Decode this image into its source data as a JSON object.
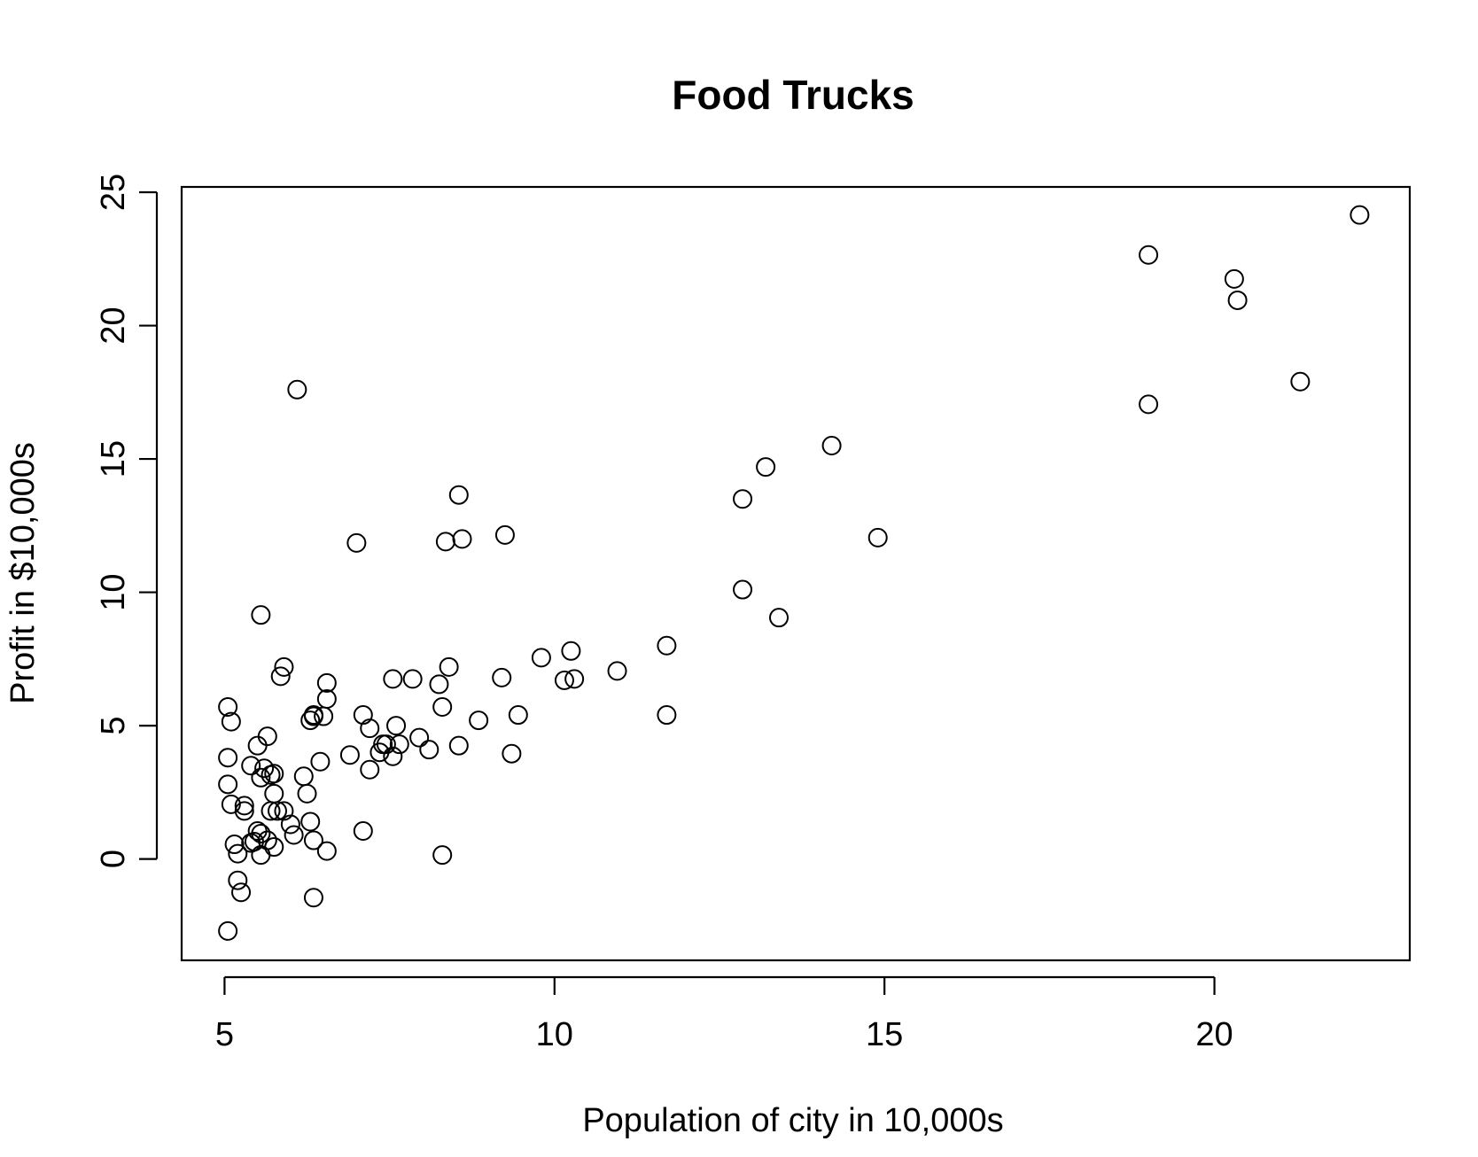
{
  "chart_data": {
    "type": "scatter",
    "title": "Food Trucks",
    "xlabel": "Population of city in 10,000s",
    "ylabel": "Profit in $10,000s",
    "xlim": [
      4.35,
      22.96
    ],
    "ylim": [
      -3.8,
      25.2
    ],
    "xticks": [
      5,
      10,
      15,
      20
    ],
    "yticks": [
      0,
      5,
      10,
      15,
      20,
      25
    ],
    "grid": false,
    "marker": "open-circle",
    "color": "#000000",
    "x": [
      22.2,
      19.0,
      20.3,
      20.35,
      21.3,
      19.0,
      14.2,
      13.2,
      12.85,
      14.9,
      12.85,
      13.4,
      11.7,
      11.7,
      10.95,
      10.3,
      10.25,
      10.15,
      9.8,
      9.2,
      9.45,
      9.35,
      9.25,
      8.85,
      8.6,
      8.55,
      8.35,
      8.4,
      8.3,
      8.25,
      8.55,
      8.3,
      8.1,
      7.95,
      7.85,
      7.65,
      7.6,
      7.55,
      7.45,
      7.4,
      7.35,
      7.55,
      7.2,
      7.2,
      7.1,
      7.0,
      6.9,
      7.1,
      6.55,
      6.5,
      6.55,
      6.3,
      6.35,
      6.35,
      6.45,
      6.25,
      6.2,
      6.1,
      6.3,
      6.35,
      6.55,
      6.35,
      5.9,
      5.85,
      5.55,
      5.65,
      5.5,
      5.4,
      5.6,
      5.75,
      5.7,
      5.55,
      5.75,
      5.3,
      5.3,
      5.7,
      5.8,
      5.9,
      6.0,
      6.05,
      5.5,
      5.55,
      5.65,
      5.45,
      5.4,
      5.75,
      5.15,
      5.2,
      5.55,
      5.05,
      5.1,
      5.05,
      5.05,
      5.1,
      5.2,
      5.25,
      5.05
    ],
    "y": [
      24.15,
      22.65,
      21.75,
      20.95,
      17.9,
      17.05,
      15.5,
      14.7,
      13.5,
      12.05,
      10.1,
      9.05,
      8.0,
      5.4,
      7.05,
      6.75,
      7.8,
      6.7,
      7.55,
      6.8,
      5.4,
      3.95,
      12.15,
      5.2,
      12.0,
      13.65,
      11.9,
      7.2,
      5.7,
      6.55,
      4.25,
      0.15,
      4.1,
      4.55,
      6.75,
      4.3,
      5.0,
      6.75,
      4.3,
      4.3,
      4.0,
      3.85,
      4.9,
      3.35,
      5.4,
      11.85,
      3.9,
      1.05,
      6.0,
      5.35,
      6.6,
      5.2,
      5.35,
      5.4,
      3.65,
      2.45,
      3.1,
      17.6,
      1.4,
      0.7,
      0.3,
      -1.45,
      7.2,
      6.85,
      9.15,
      4.6,
      4.25,
      3.5,
      3.4,
      3.2,
      3.15,
      3.05,
      2.45,
      2.0,
      1.8,
      1.8,
      1.8,
      1.8,
      1.3,
      0.9,
      1.05,
      0.95,
      0.7,
      0.65,
      0.6,
      0.45,
      0.55,
      0.2,
      0.15,
      5.7,
      5.15,
      3.8,
      2.8,
      2.05,
      -0.8,
      -1.25,
      -2.7
    ]
  }
}
